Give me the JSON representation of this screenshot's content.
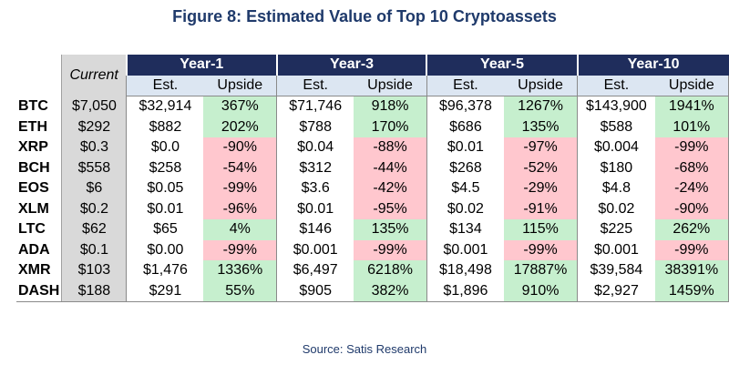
{
  "chart_data": {
    "type": "table",
    "title": "Figure 8: Estimated Value of Top 10 Cryptoassets",
    "source": "Source: Satis Research",
    "current_label": "Current",
    "sub_labels": {
      "est": "Est.",
      "upside": "Upside"
    },
    "horizons": [
      "Year-1",
      "Year-3",
      "Year-5",
      "Year-10"
    ],
    "rows": [
      {
        "ticker": "BTC",
        "current": "$7,050",
        "values": [
          {
            "est": "$32,914",
            "upside": "367%",
            "positive": true
          },
          {
            "est": "$71,746",
            "upside": "918%",
            "positive": true
          },
          {
            "est": "$96,378",
            "upside": "1267%",
            "positive": true
          },
          {
            "est": "$143,900",
            "upside": "1941%",
            "positive": true
          }
        ]
      },
      {
        "ticker": "ETH",
        "current": "$292",
        "values": [
          {
            "est": "$882",
            "upside": "202%",
            "positive": true
          },
          {
            "est": "$788",
            "upside": "170%",
            "positive": true
          },
          {
            "est": "$686",
            "upside": "135%",
            "positive": true
          },
          {
            "est": "$588",
            "upside": "101%",
            "positive": true
          }
        ]
      },
      {
        "ticker": "XRP",
        "current": "$0.3",
        "values": [
          {
            "est": "$0.0",
            "upside": "-90%",
            "positive": false
          },
          {
            "est": "$0.04",
            "upside": "-88%",
            "positive": false
          },
          {
            "est": "$0.01",
            "upside": "-97%",
            "positive": false
          },
          {
            "est": "$0.004",
            "upside": "-99%",
            "positive": false
          }
        ]
      },
      {
        "ticker": "BCH",
        "current": "$558",
        "values": [
          {
            "est": "$258",
            "upside": "-54%",
            "positive": false
          },
          {
            "est": "$312",
            "upside": "-44%",
            "positive": false
          },
          {
            "est": "$268",
            "upside": "-52%",
            "positive": false
          },
          {
            "est": "$180",
            "upside": "-68%",
            "positive": false
          }
        ]
      },
      {
        "ticker": "EOS",
        "current": "$6",
        "values": [
          {
            "est": "$0.05",
            "upside": "-99%",
            "positive": false
          },
          {
            "est": "$3.6",
            "upside": "-42%",
            "positive": false
          },
          {
            "est": "$4.5",
            "upside": "-29%",
            "positive": false
          },
          {
            "est": "$4.8",
            "upside": "-24%",
            "positive": false
          }
        ]
      },
      {
        "ticker": "XLM",
        "current": "$0.2",
        "values": [
          {
            "est": "$0.01",
            "upside": "-96%",
            "positive": false
          },
          {
            "est": "$0.01",
            "upside": "-95%",
            "positive": false
          },
          {
            "est": "$0.02",
            "upside": "-91%",
            "positive": false
          },
          {
            "est": "$0.02",
            "upside": "-90%",
            "positive": false
          }
        ]
      },
      {
        "ticker": "LTC",
        "current": "$62",
        "values": [
          {
            "est": "$65",
            "upside": "4%",
            "positive": true
          },
          {
            "est": "$146",
            "upside": "135%",
            "positive": true
          },
          {
            "est": "$134",
            "upside": "115%",
            "positive": true
          },
          {
            "est": "$225",
            "upside": "262%",
            "positive": true
          }
        ]
      },
      {
        "ticker": "ADA",
        "current": "$0.1",
        "values": [
          {
            "est": "$0.00",
            "upside": "-99%",
            "positive": false
          },
          {
            "est": "$0.001",
            "upside": "-99%",
            "positive": false
          },
          {
            "est": "$0.001",
            "upside": "-99%",
            "positive": false
          },
          {
            "est": "$0.001",
            "upside": "-99%",
            "positive": false
          }
        ]
      },
      {
        "ticker": "XMR",
        "current": "$103",
        "values": [
          {
            "est": "$1,476",
            "upside": "1336%",
            "positive": true
          },
          {
            "est": "$6,497",
            "upside": "6218%",
            "positive": true
          },
          {
            "est": "$18,498",
            "upside": "17887%",
            "positive": true
          },
          {
            "est": "$39,584",
            "upside": "38391%",
            "positive": true
          }
        ]
      },
      {
        "ticker": "DASH",
        "current": "$188",
        "values": [
          {
            "est": "$291",
            "upside": "55%",
            "positive": true
          },
          {
            "est": "$905",
            "upside": "382%",
            "positive": true
          },
          {
            "est": "$1,896",
            "upside": "910%",
            "positive": true
          },
          {
            "est": "$2,927",
            "upside": "1459%",
            "positive": true
          }
        ]
      }
    ],
    "colors": {
      "header_navy": "#1f2d5c",
      "subheader_blue": "#dce6f2",
      "current_gray": "#d9d9d9",
      "positive_green": "#c6efce",
      "negative_red": "#ffc7ce",
      "title_blue": "#1f3a6b"
    }
  }
}
